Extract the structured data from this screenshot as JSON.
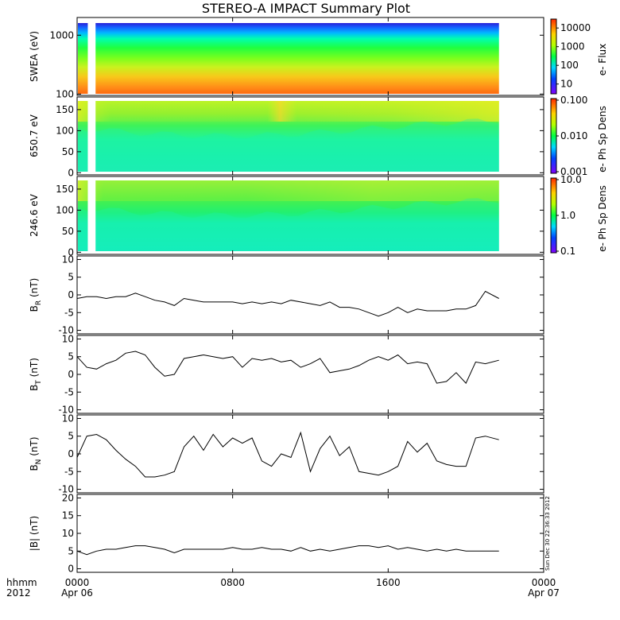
{
  "title": "STEREO-A IMPACT Summary Plot",
  "stamp": "Sun Dec 30 22:36:33 2012",
  "x_axis": {
    "label_line1": "hhmm",
    "label_line2": "2012",
    "ticks": [
      {
        "t": 0,
        "top": "0000",
        "bottom": "Apr 06"
      },
      {
        "t": 8,
        "top": "0800",
        "bottom": ""
      },
      {
        "t": 16,
        "top": "1600",
        "bottom": ""
      },
      {
        "t": 24,
        "top": "0000",
        "bottom": "Apr 07"
      }
    ],
    "range_hours": [
      0,
      24
    ],
    "data_end_hours": 21.7,
    "gap_hours": [
      0.55,
      0.95
    ]
  },
  "chart_data": [
    {
      "type": "heatmap",
      "id": "swea",
      "ylabel": "SWEA (eV)",
      "yscale": "log",
      "ylim": [
        95,
        2000
      ],
      "yticks": [
        {
          "v": 100,
          "label": "100"
        },
        {
          "v": 1000,
          "label": "1000"
        }
      ],
      "colorbar": {
        "label": "e- Flux",
        "scale": "log",
        "ticks": [
          "10",
          "100",
          "1000",
          "10000"
        ],
        "range": [
          3,
          30000
        ]
      }
    },
    {
      "type": "heatmap",
      "id": "pad650",
      "ylabel": "650.7 eV",
      "ylim": [
        -5,
        180
      ],
      "yticks": [
        {
          "v": 0,
          "label": "0"
        },
        {
          "v": 50,
          "label": "50"
        },
        {
          "v": 100,
          "label": "100"
        },
        {
          "v": 150,
          "label": "150"
        }
      ],
      "colorbar": {
        "label": "e- Ph Sp Dens",
        "scale": "log",
        "ticks": [
          "0.100",
          "0.010",
          "0.001"
        ],
        "range": [
          0.001,
          0.1
        ]
      }
    },
    {
      "type": "heatmap",
      "id": "pad246",
      "ylabel": "246.6 eV",
      "ylim": [
        -5,
        180
      ],
      "yticks": [
        {
          "v": 0,
          "label": "0"
        },
        {
          "v": 50,
          "label": "50"
        },
        {
          "v": 100,
          "label": "100"
        },
        {
          "v": 150,
          "label": "150"
        }
      ],
      "colorbar": {
        "label": "e- Ph Sp Dens",
        "scale": "log",
        "ticks": [
          "10.0",
          "1.0",
          "0.1"
        ],
        "range": [
          0.1,
          10
        ]
      }
    },
    {
      "type": "line",
      "id": "br",
      "ylabel": "B",
      "ylabel_sub": "R",
      "ylabel_unit": "(nT)",
      "ylim": [
        -11,
        11
      ],
      "yticks": [
        {
          "v": -10,
          "label": "-10"
        },
        {
          "v": -5,
          "label": "-5"
        },
        {
          "v": 0,
          "label": "0"
        },
        {
          "v": 5,
          "label": "5"
        },
        {
          "v": 10,
          "label": "10"
        }
      ],
      "x": [
        0.0,
        0.5,
        1.0,
        1.5,
        2.0,
        2.5,
        3.0,
        3.5,
        4.0,
        4.5,
        5.0,
        5.5,
        6.0,
        6.5,
        7.0,
        7.5,
        8.0,
        8.5,
        9.0,
        9.5,
        10.0,
        10.5,
        11.0,
        11.5,
        12.0,
        12.5,
        13.0,
        13.5,
        14.0,
        14.5,
        15.0,
        15.5,
        16.0,
        16.5,
        17.0,
        17.5,
        18.0,
        18.5,
        19.0,
        19.5,
        20.0,
        20.5,
        21.0,
        21.7
      ],
      "values": [
        -1.0,
        -0.5,
        -0.5,
        -1.0,
        -0.5,
        -0.5,
        0.5,
        -0.5,
        -1.5,
        -2.0,
        -3.0,
        -1.0,
        -1.5,
        -2.0,
        -2.0,
        -2.0,
        -2.0,
        -2.5,
        -2.0,
        -2.5,
        -2.0,
        -2.5,
        -1.5,
        -2.0,
        -2.5,
        -3.0,
        -2.0,
        -3.5,
        -3.5,
        -4.0,
        -5.0,
        -6.0,
        -5.0,
        -3.5,
        -5.0,
        -4.0,
        -4.5,
        -4.5,
        -4.5,
        -4.0,
        -4.0,
        -3.0,
        1.0,
        -1.0
      ]
    },
    {
      "type": "line",
      "id": "bt",
      "ylabel": "B",
      "ylabel_sub": "T",
      "ylabel_unit": "(nT)",
      "ylim": [
        -11,
        11
      ],
      "yticks": [
        {
          "v": -10,
          "label": "-10"
        },
        {
          "v": -5,
          "label": "-5"
        },
        {
          "v": 0,
          "label": "0"
        },
        {
          "v": 5,
          "label": "5"
        },
        {
          "v": 10,
          "label": "10"
        }
      ],
      "x": [
        0.0,
        0.5,
        1.0,
        1.5,
        2.0,
        2.5,
        3.0,
        3.5,
        4.0,
        4.5,
        5.0,
        5.5,
        6.0,
        6.5,
        7.0,
        7.5,
        8.0,
        8.5,
        9.0,
        9.5,
        10.0,
        10.5,
        11.0,
        11.5,
        12.0,
        12.5,
        13.0,
        13.5,
        14.0,
        14.5,
        15.0,
        15.5,
        16.0,
        16.5,
        17.0,
        17.5,
        18.0,
        18.5,
        19.0,
        19.5,
        20.0,
        20.5,
        21.0,
        21.7
      ],
      "values": [
        5.0,
        2.0,
        1.5,
        3.0,
        4.0,
        6.0,
        6.5,
        5.5,
        2.0,
        -0.5,
        0.0,
        4.5,
        5.0,
        5.5,
        5.0,
        4.5,
        5.0,
        2.0,
        4.5,
        4.0,
        4.5,
        3.5,
        4.0,
        2.0,
        3.0,
        4.5,
        0.5,
        1.0,
        1.5,
        2.5,
        4.0,
        5.0,
        4.0,
        5.5,
        3.0,
        3.5,
        3.0,
        -2.5,
        -2.0,
        0.5,
        -2.5,
        3.5,
        3.0,
        4.0
      ]
    },
    {
      "type": "line",
      "id": "bn",
      "ylabel": "B",
      "ylabel_sub": "N",
      "ylabel_unit": "(nT)",
      "ylim": [
        -11,
        11
      ],
      "yticks": [
        {
          "v": -10,
          "label": "-10"
        },
        {
          "v": -5,
          "label": "-5"
        },
        {
          "v": 0,
          "label": "0"
        },
        {
          "v": 5,
          "label": "5"
        },
        {
          "v": 10,
          "label": "10"
        }
      ],
      "x": [
        0.0,
        0.5,
        1.0,
        1.5,
        2.0,
        2.5,
        3.0,
        3.5,
        4.0,
        4.5,
        5.0,
        5.5,
        6.0,
        6.5,
        7.0,
        7.5,
        8.0,
        8.5,
        9.0,
        9.5,
        10.0,
        10.5,
        11.0,
        11.5,
        12.0,
        12.5,
        13.0,
        13.5,
        14.0,
        14.5,
        15.0,
        15.5,
        16.0,
        16.5,
        17.0,
        17.5,
        18.0,
        18.5,
        19.0,
        19.5,
        20.0,
        20.5,
        21.0,
        21.7
      ],
      "values": [
        -1.0,
        5.0,
        5.5,
        4.0,
        1.0,
        -1.5,
        -3.5,
        -6.5,
        -6.5,
        -6.0,
        -5.0,
        2.0,
        5.0,
        1.0,
        5.5,
        2.0,
        4.5,
        3.0,
        4.5,
        -2.0,
        -3.5,
        0.0,
        -1.0,
        6.0,
        -5.0,
        1.5,
        5.0,
        -0.5,
        2.0,
        -5.0,
        -5.5,
        -6.0,
        -5.0,
        -3.5,
        3.5,
        0.5,
        3.0,
        -2.0,
        -3.0,
        -3.5,
        -3.5,
        4.5,
        5.0,
        4.0
      ]
    },
    {
      "type": "line",
      "id": "bmag",
      "ylabel": "|B| (nT)",
      "ylim": [
        -1,
        21
      ],
      "yticks": [
        {
          "v": 0,
          "label": "0"
        },
        {
          "v": 5,
          "label": "5"
        },
        {
          "v": 10,
          "label": "10"
        },
        {
          "v": 15,
          "label": "15"
        },
        {
          "v": 20,
          "label": "20"
        }
      ],
      "x": [
        0.0,
        0.5,
        1.0,
        1.5,
        2.0,
        2.5,
        3.0,
        3.5,
        4.0,
        4.5,
        5.0,
        5.5,
        6.0,
        6.5,
        7.0,
        7.5,
        8.0,
        8.5,
        9.0,
        9.5,
        10.0,
        10.5,
        11.0,
        11.5,
        12.0,
        12.5,
        13.0,
        13.5,
        14.0,
        14.5,
        15.0,
        15.5,
        16.0,
        16.5,
        17.0,
        17.5,
        18.0,
        18.5,
        19.0,
        19.5,
        20.0,
        20.5,
        21.0,
        21.7
      ],
      "values": [
        5.0,
        4.0,
        5.0,
        5.5,
        5.5,
        6.0,
        6.5,
        6.5,
        6.0,
        5.5,
        4.5,
        5.5,
        5.5,
        5.5,
        5.5,
        5.5,
        6.0,
        5.5,
        5.5,
        6.0,
        5.5,
        5.5,
        5.0,
        6.0,
        5.0,
        5.5,
        5.0,
        5.5,
        6.0,
        6.5,
        6.5,
        6.0,
        6.5,
        5.5,
        6.0,
        5.5,
        5.0,
        5.5,
        5.0,
        5.5,
        5.0,
        5.0,
        5.0,
        5.0
      ]
    }
  ]
}
